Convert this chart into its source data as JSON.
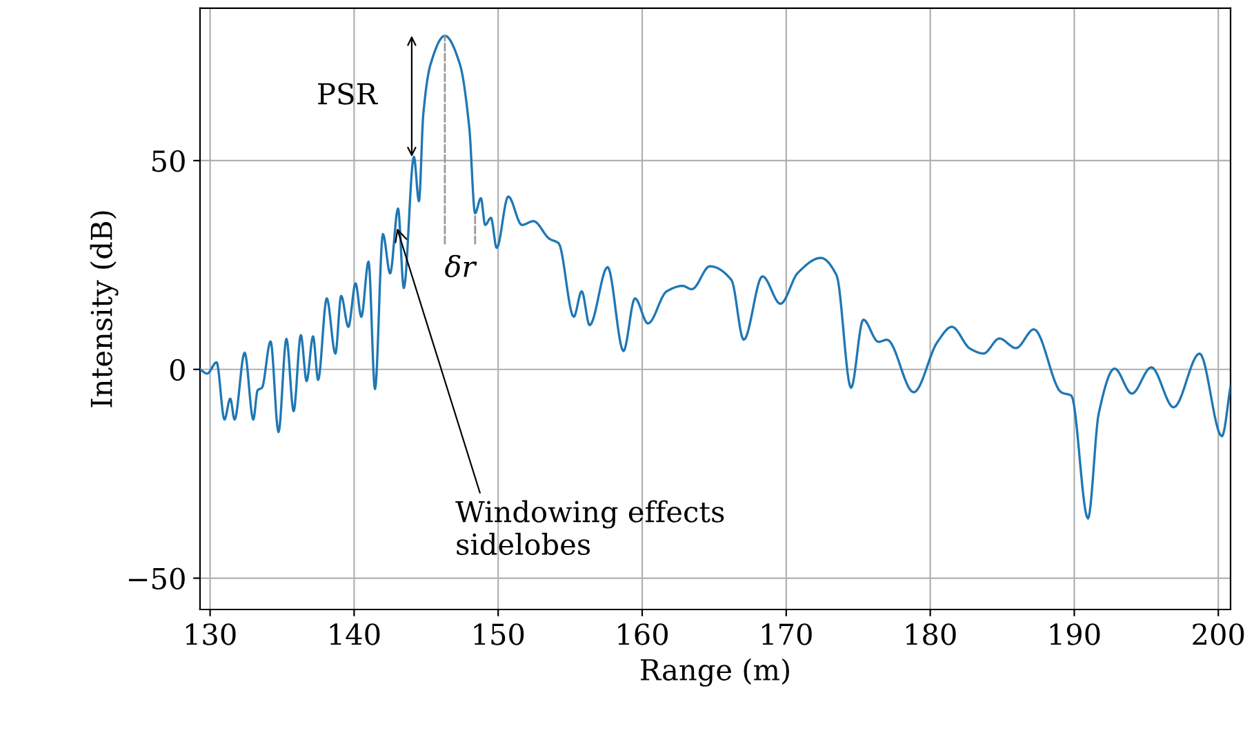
{
  "chart_data": {
    "type": "line",
    "xlabel": "Range (m)",
    "ylabel": "Intensity (dB)",
    "x": [
      129.3,
      129.8,
      130.45,
      131.0,
      131.4,
      131.7,
      132.4,
      133.0,
      133.3,
      133.6,
      134.2,
      134.75,
      135.3,
      135.8,
      136.3,
      136.7,
      137.15,
      137.5,
      138.1,
      138.7,
      139.1,
      139.6,
      140.1,
      140.5,
      141.0,
      141.45,
      142.0,
      142.5,
      143.05,
      143.45,
      144.15,
      144.5,
      144.8,
      145.3,
      146.3,
      147.35,
      148.0,
      148.4,
      148.8,
      149.1,
      149.5,
      149.9,
      150.7,
      151.65,
      152.45,
      153.55,
      154.2,
      155.25,
      155.8,
      156.35,
      157.6,
      158.7,
      159.5,
      160.4,
      161.7,
      162.8,
      163.45,
      164.7,
      166.2,
      167.05,
      168.35,
      169.6,
      170.8,
      172.4,
      173.5,
      174.5,
      175.35,
      176.4,
      177.0,
      178.85,
      180.5,
      181.5,
      182.75,
      183.7,
      184.8,
      185.95,
      187.2,
      189.1,
      189.8,
      190.95,
      191.7,
      192.8,
      194.0,
      195.35,
      196.9,
      198.7,
      200.25,
      200.85
    ],
    "series": [
      {
        "color": "#1f77b4",
        "values": [
          0,
          -1,
          1.7,
          -12,
          -7,
          -12,
          4,
          -12,
          -5,
          -4.4,
          6.7,
          -15,
          7.3,
          -10,
          8.2,
          -2.8,
          7.9,
          -2.5,
          17,
          3.8,
          17.6,
          10.2,
          20.6,
          12.6,
          25.8,
          -4.7,
          32.4,
          23,
          38.5,
          19.5,
          50.9,
          40.3,
          61,
          73,
          79.9,
          73,
          57.7,
          37.4,
          41,
          34.6,
          36.3,
          29.1,
          41.4,
          34.6,
          35.5,
          31.3,
          30.2,
          12.6,
          18.7,
          10.6,
          24.5,
          4.4,
          17,
          11,
          18.7,
          20,
          19.2,
          24.7,
          21.4,
          7.1,
          22.3,
          15.7,
          23.1,
          26.7,
          22.5,
          -4.4,
          11.9,
          6.6,
          7.1,
          -5.5,
          6.6,
          10.2,
          5,
          3.8,
          7.4,
          5.1,
          9.6,
          -5.5,
          -6.3,
          -35.7,
          -10.5,
          0.2,
          -5.8,
          0.5,
          -9.1,
          3.8,
          -16,
          -4
        ]
      }
    ],
    "xlim": [
      129.3,
      200.85
    ],
    "ylim": [
      -57.5,
      86.5
    ],
    "xticks": [
      130,
      140,
      150,
      160,
      170,
      180,
      190,
      200
    ],
    "yticks": [
      -50,
      0,
      50
    ],
    "grid": true,
    "marker": "none",
    "line_style": "solid",
    "annotations": [
      {
        "text": "PSR",
        "x": 144.0,
        "y": 50.9
      },
      {
        "text": "δr",
        "x": 148.4,
        "y": 37.4
      },
      {
        "text": "Windowing effects\nsidelobes",
        "x": 142.9,
        "y": 34.7
      }
    ]
  }
}
